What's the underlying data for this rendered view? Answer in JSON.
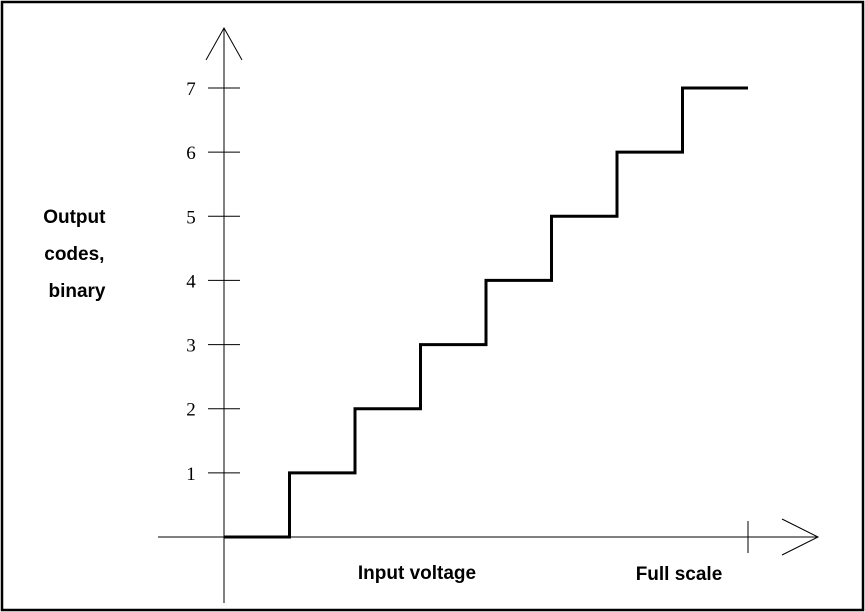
{
  "chart_data": {
    "type": "line",
    "step": true,
    "title": "",
    "xlabel": "Input voltage",
    "x_end_label": "Full scale",
    "ylabel_lines": [
      "Output",
      "codes,",
      "binary"
    ],
    "y_ticks": [
      1,
      2,
      3,
      4,
      5,
      6,
      7
    ],
    "xlim": [
      0,
      8
    ],
    "ylim": [
      0,
      7
    ],
    "full_scale_x": 8,
    "grid": false,
    "legend": "none",
    "series": [
      {
        "x": [
          0,
          1,
          2,
          3,
          4,
          5,
          6,
          7
        ],
        "y": [
          0,
          1,
          2,
          3,
          4,
          5,
          6,
          7
        ],
        "x_last_end": 8
      }
    ],
    "colors": {
      "line": "#000000",
      "axis": "#000000",
      "frame": "#000000"
    }
  }
}
